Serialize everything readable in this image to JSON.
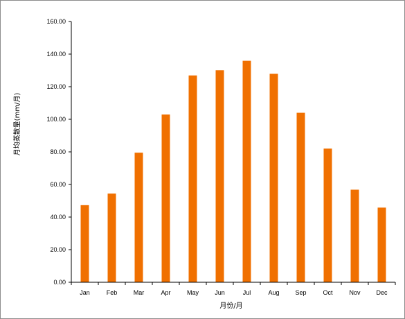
{
  "chart_data": {
    "type": "bar",
    "title": "",
    "xlabel": "月份/月",
    "ylabel": "月均蒸散量(mm/月)",
    "categories": [
      "Jan",
      "Feb",
      "Mar",
      "Apr",
      "May",
      "Jun",
      "Jul",
      "Aug",
      "Sep",
      "Oct",
      "Nov",
      "Dec"
    ],
    "values": [
      47.3,
      54.4,
      79.5,
      102.9,
      126.9,
      130.1,
      135.9,
      127.9,
      104.0,
      82.0,
      56.8,
      45.8
    ],
    "ylim": [
      0,
      160
    ],
    "yticks": [
      "0.00",
      "20.00",
      "40.00",
      "60.00",
      "80.00",
      "100.00",
      "120.00",
      "140.00",
      "160.00"
    ],
    "grid": false,
    "legend": "none",
    "bar_color": "#f07000",
    "axis_color": "#000000"
  }
}
